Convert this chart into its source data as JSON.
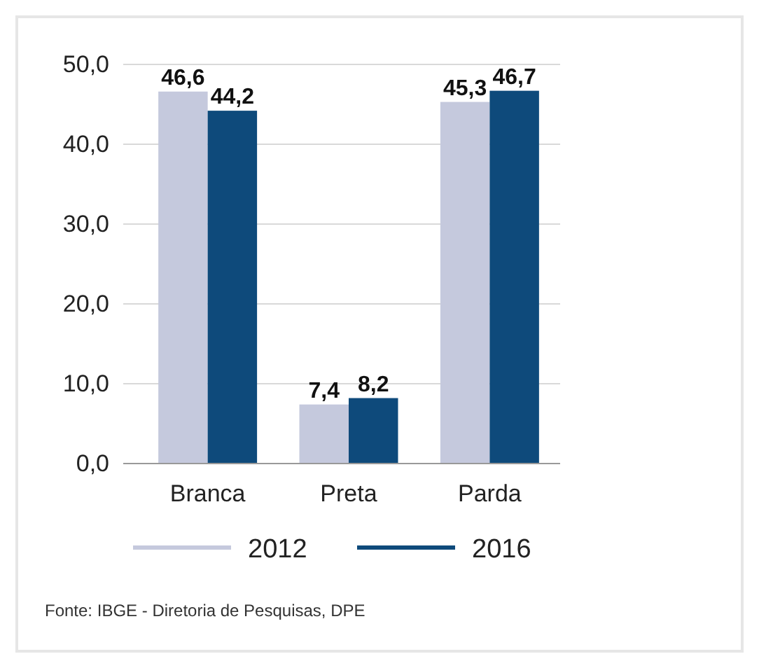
{
  "chart_data": {
    "type": "bar",
    "categories": [
      "Branca",
      "Preta",
      "Parda"
    ],
    "series": [
      {
        "name": "2012",
        "color": "#c5c9dd",
        "values": [
          46.6,
          7.4,
          45.3
        ],
        "value_labels": [
          "46,6",
          "7,4",
          "45,3"
        ]
      },
      {
        "name": "2016",
        "color": "#0e4a7b",
        "values": [
          44.2,
          8.2,
          46.7
        ],
        "value_labels": [
          "44,2",
          "8,2",
          "46,7"
        ]
      }
    ],
    "ylim": [
      0,
      50
    ],
    "yticks": [
      {
        "value": 0,
        "label": "0,0"
      },
      {
        "value": 10,
        "label": "10,0"
      },
      {
        "value": 20,
        "label": "20,0"
      },
      {
        "value": 30,
        "label": "30,0"
      },
      {
        "value": 40,
        "label": "40,0"
      },
      {
        "value": 50,
        "label": "50,0"
      }
    ],
    "grid": "y",
    "legend": "bottom",
    "annotations": [
      "Fonte: IBGE - Diretoria de Pesquisas, DPE"
    ]
  }
}
